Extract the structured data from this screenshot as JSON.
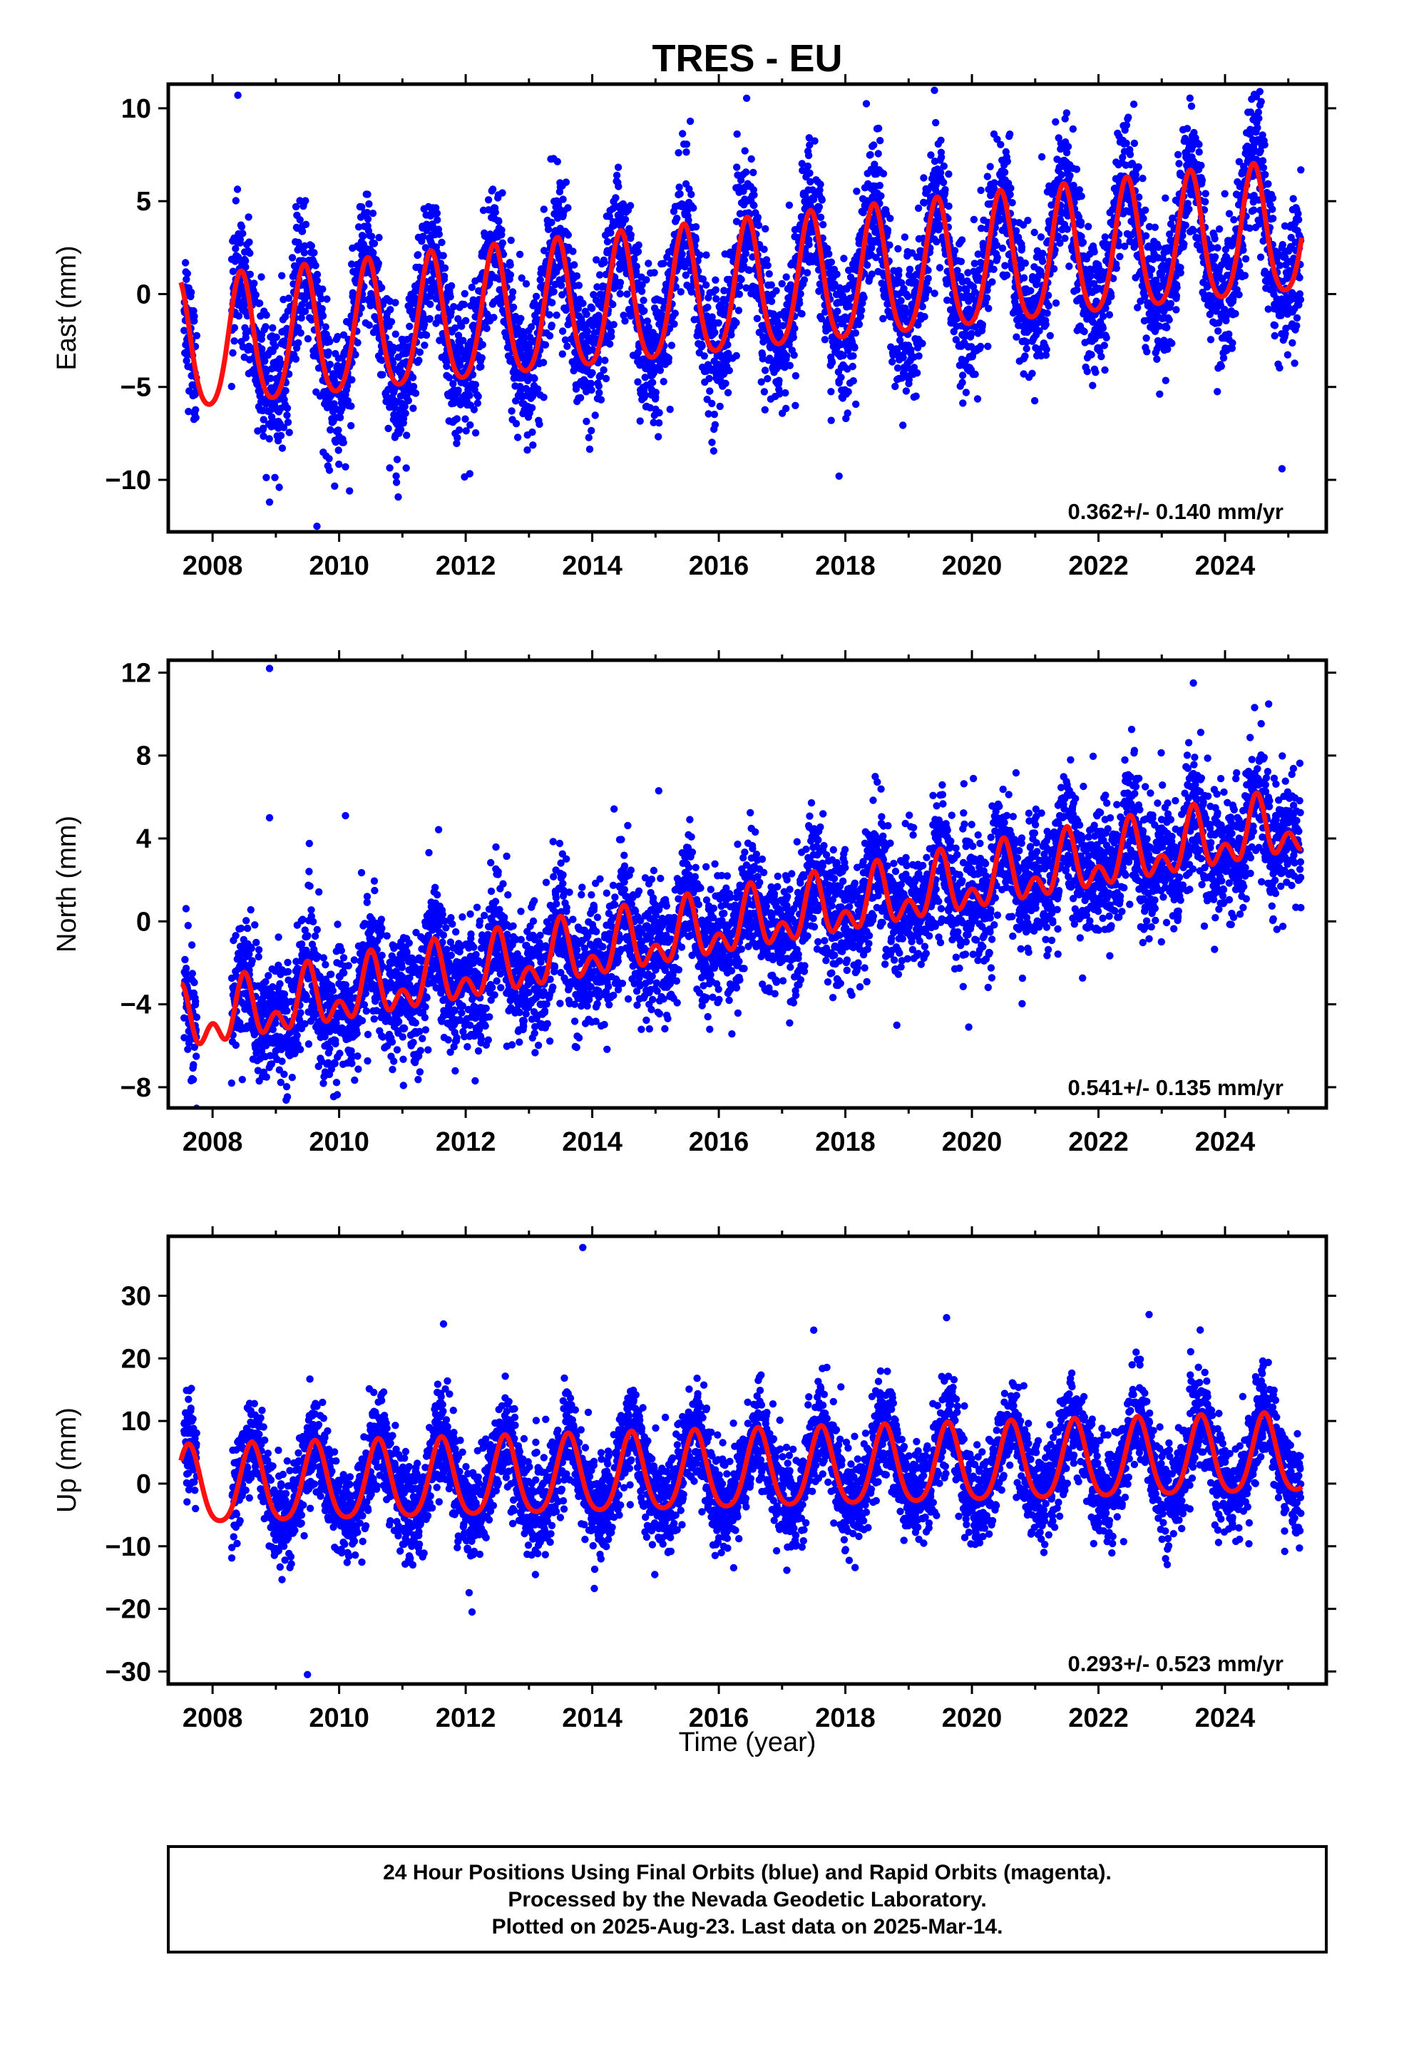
{
  "title": "TRES - EU",
  "xlabel": "Time (year)",
  "footer": {
    "line1": "24 Hour Positions Using Final Orbits (blue) and Rapid Orbits (magenta).",
    "line2": "Processed by the Nevada Geodetic Laboratory.",
    "line3": "Plotted on 2025-Aug-23. Last data on 2025-Mar-14."
  },
  "colors": {
    "points": "#0000ff",
    "fit": "#ff1010",
    "axis": "#000000"
  },
  "chart_data": [
    {
      "type": "scatter",
      "ylabel": "East (mm)",
      "rate": "0.362+/- 0.140 mm/yr",
      "xlim": [
        2007.3,
        2025.6
      ],
      "ylim": [
        -12.8,
        11.3
      ],
      "x_ticks": [
        2008,
        2010,
        2012,
        2014,
        2016,
        2018,
        2020,
        2022,
        2024
      ],
      "y_ticks": [
        -10,
        -5,
        0,
        5,
        10
      ],
      "series_points": {
        "start": 2007.55,
        "end": 2025.2,
        "step_days": 1,
        "gap": [
          2007.75,
          2008.3
        ]
      },
      "fit": {
        "intercept": -3.1,
        "slope": 0.362,
        "t0": 2007.5,
        "annual_amp": 3.5,
        "annual_phase_peak": 0.45,
        "semiannual_amp": 0.5,
        "scatter_sd": 1.8
      },
      "outliers": [
        [
          2008.4,
          10.7
        ],
        [
          2008.9,
          -11.2
        ],
        [
          2009.65,
          -12.5
        ],
        [
          2010.1,
          -9.3
        ],
        [
          2015.55,
          9.3
        ],
        [
          2017.9,
          -9.8
        ],
        [
          2024.55,
          10.9
        ],
        [
          2024.9,
          -9.4
        ]
      ]
    },
    {
      "type": "scatter",
      "ylabel": "North (mm)",
      "rate": "0.541+/- 0.135 mm/yr",
      "xlim": [
        2007.3,
        2025.6
      ],
      "ylim": [
        -9.0,
        12.6
      ],
      "x_ticks": [
        2008,
        2010,
        2012,
        2014,
        2016,
        2018,
        2020,
        2022,
        2024
      ],
      "y_ticks": [
        -8,
        -4,
        0,
        4,
        8,
        12
      ],
      "series_points": {
        "start": 2007.55,
        "end": 2025.2,
        "step_days": 1,
        "gap": [
          2007.75,
          2008.3
        ]
      },
      "fit": {
        "intercept": -5.0,
        "slope": 0.541,
        "t0": 2007.5,
        "annual_amp": 1.1,
        "annual_phase_peak": 0.5,
        "semiannual_amp": 0.9,
        "scatter_sd": 1.5
      },
      "outliers": [
        [
          2008.9,
          12.2
        ],
        [
          2008.9,
          5.0
        ],
        [
          2010.1,
          5.1
        ],
        [
          2015.05,
          6.3
        ],
        [
          2019.95,
          -5.1
        ],
        [
          2023.5,
          11.5
        ]
      ]
    },
    {
      "type": "scatter",
      "ylabel": "Up (mm)",
      "rate": "0.293+/- 0.523 mm/yr",
      "xlim": [
        2007.3,
        2025.6
      ],
      "ylim": [
        -32,
        39.5
      ],
      "x_ticks": [
        2008,
        2010,
        2012,
        2014,
        2016,
        2018,
        2020,
        2022,
        2024
      ],
      "y_ticks": [
        -30,
        -20,
        -10,
        0,
        10,
        20,
        30
      ],
      "series_points": {
        "start": 2007.55,
        "end": 2025.2,
        "step_days": 1,
        "gap": [
          2007.75,
          2008.3
        ]
      },
      "fit": {
        "intercept": -0.9,
        "slope": 0.293,
        "t0": 2007.5,
        "annual_amp": 6.2,
        "annual_phase_peak": 0.62,
        "semiannual_amp": 1.0,
        "scatter_sd": 3.8
      },
      "outliers": [
        [
          2013.85,
          37.7
        ],
        [
          2011.65,
          25.5
        ],
        [
          2017.5,
          24.5
        ],
        [
          2009.5,
          -30.5
        ],
        [
          2012.1,
          -20.5
        ],
        [
          2019.6,
          26.5
        ],
        [
          2022.8,
          27.0
        ]
      ]
    }
  ]
}
